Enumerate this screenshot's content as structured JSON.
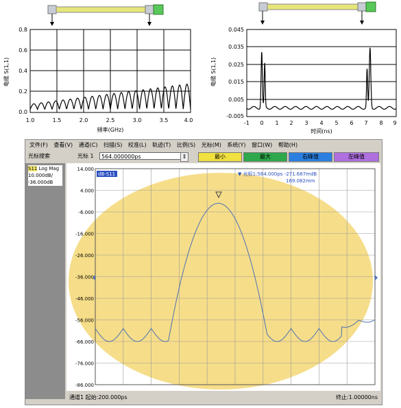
{
  "top_left": {
    "ylabel": "电缆 S(1,1)",
    "xlabel": "频率(GHz)",
    "yticks": [
      "0.8",
      "0.6",
      "0.4",
      "0.2",
      "0.0"
    ],
    "xticks": [
      "1.0",
      "1.5",
      "2.0",
      "2.5",
      "3.0",
      "3.5",
      "4.0"
    ]
  },
  "top_right": {
    "ylabel": "电缆 S(1,1)",
    "xlabel": "时间(ns)",
    "yticks": [
      "0.045",
      "0.035",
      "0.025",
      "0.015",
      "0.005",
      "-0.005"
    ],
    "xticks": [
      "-1",
      "0",
      "1",
      "2",
      "3",
      "4",
      "5",
      "6",
      "7",
      "8",
      "9"
    ]
  },
  "menu": [
    "文件(F)",
    "查看(V)",
    "通道(C)",
    "扫描(S)",
    "校准(L)",
    "轨迹(T)",
    "比例(S)",
    "光标(M)",
    "系统(Y)",
    "窗口(W)",
    "帮助(H)"
  ],
  "toolbar": {
    "search_label": "光标搜索",
    "marker_label": "光标 1",
    "marker_value": "564.000000ps",
    "min_btn": "最小",
    "max_btn": "最大",
    "right_peak_btn": "右峰值",
    "left_peak_btn": "左峰值",
    "colors": {
      "min": "#f0e040",
      "max": "#2ea84a",
      "right": "#2a7fe0",
      "left": "#b070e0"
    }
  },
  "trace_info": {
    "name": "S11",
    "format": "Log Mag",
    "scale": "10.000dB/",
    "ref": "-36.000dB"
  },
  "plot": {
    "trace_tag": "dB-S11",
    "marker_readout": "▼ 光标1:564.000ps   -271.687mdB",
    "marker_distance": "169.082mm",
    "start_label": "通道1   起始:200.000ps",
    "stop_label": "终止:1.00000ns",
    "yticks": [
      "14.000",
      "4.000",
      "-6.000",
      "-16.000",
      "-26.000",
      "-36.000",
      "-46.000",
      "-56.000",
      "-66.000",
      "-76.000",
      "-86.000"
    ],
    "highlight_color": "#f5d774",
    "trace_color": "#4a6fb5"
  }
}
